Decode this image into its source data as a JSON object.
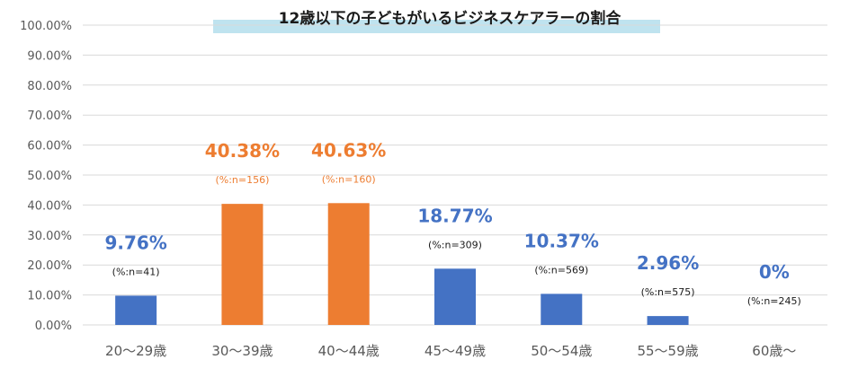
{
  "chart_data": {
    "type": "bar",
    "title": "12歳以下の子どもがいるビジネスケアラーの割合",
    "categories": [
      "20～29歳",
      "30～39歳",
      "40～44歳",
      "45～49歳",
      "50～54歳",
      "55～59歳",
      "60歳～"
    ],
    "values": [
      9.76,
      40.38,
      40.63,
      18.77,
      10.37,
      2.96,
      0
    ],
    "value_labels": [
      "9.76%",
      "40.38%",
      "40.63%",
      "18.77%",
      "10.37%",
      "2.96%",
      "0%"
    ],
    "n_labels": [
      "(%:n=41)",
      "(%:n=156)",
      "(%:n=160)",
      "(%:n=309)",
      "(%:n=569)",
      "(%:n=575)",
      "(%:n=245)"
    ],
    "ylim": [
      0,
      100
    ],
    "yticks": [
      "0.00%",
      "10.00%",
      "20.00%",
      "30.00%",
      "40.00%",
      "50.00%",
      "60.00%",
      "70.00%",
      "80.00%",
      "90.00%",
      "100.00%"
    ],
    "grid": true,
    "highlighted": [
      false,
      true,
      true,
      false,
      false,
      false,
      false
    ],
    "colors": {
      "default_bar": "#4472c4",
      "highlight_bar": "#ed7d31",
      "default_label": "#4472c4",
      "highlight_label": "#ed7d31",
      "title_band": "#bfe3ef"
    }
  }
}
